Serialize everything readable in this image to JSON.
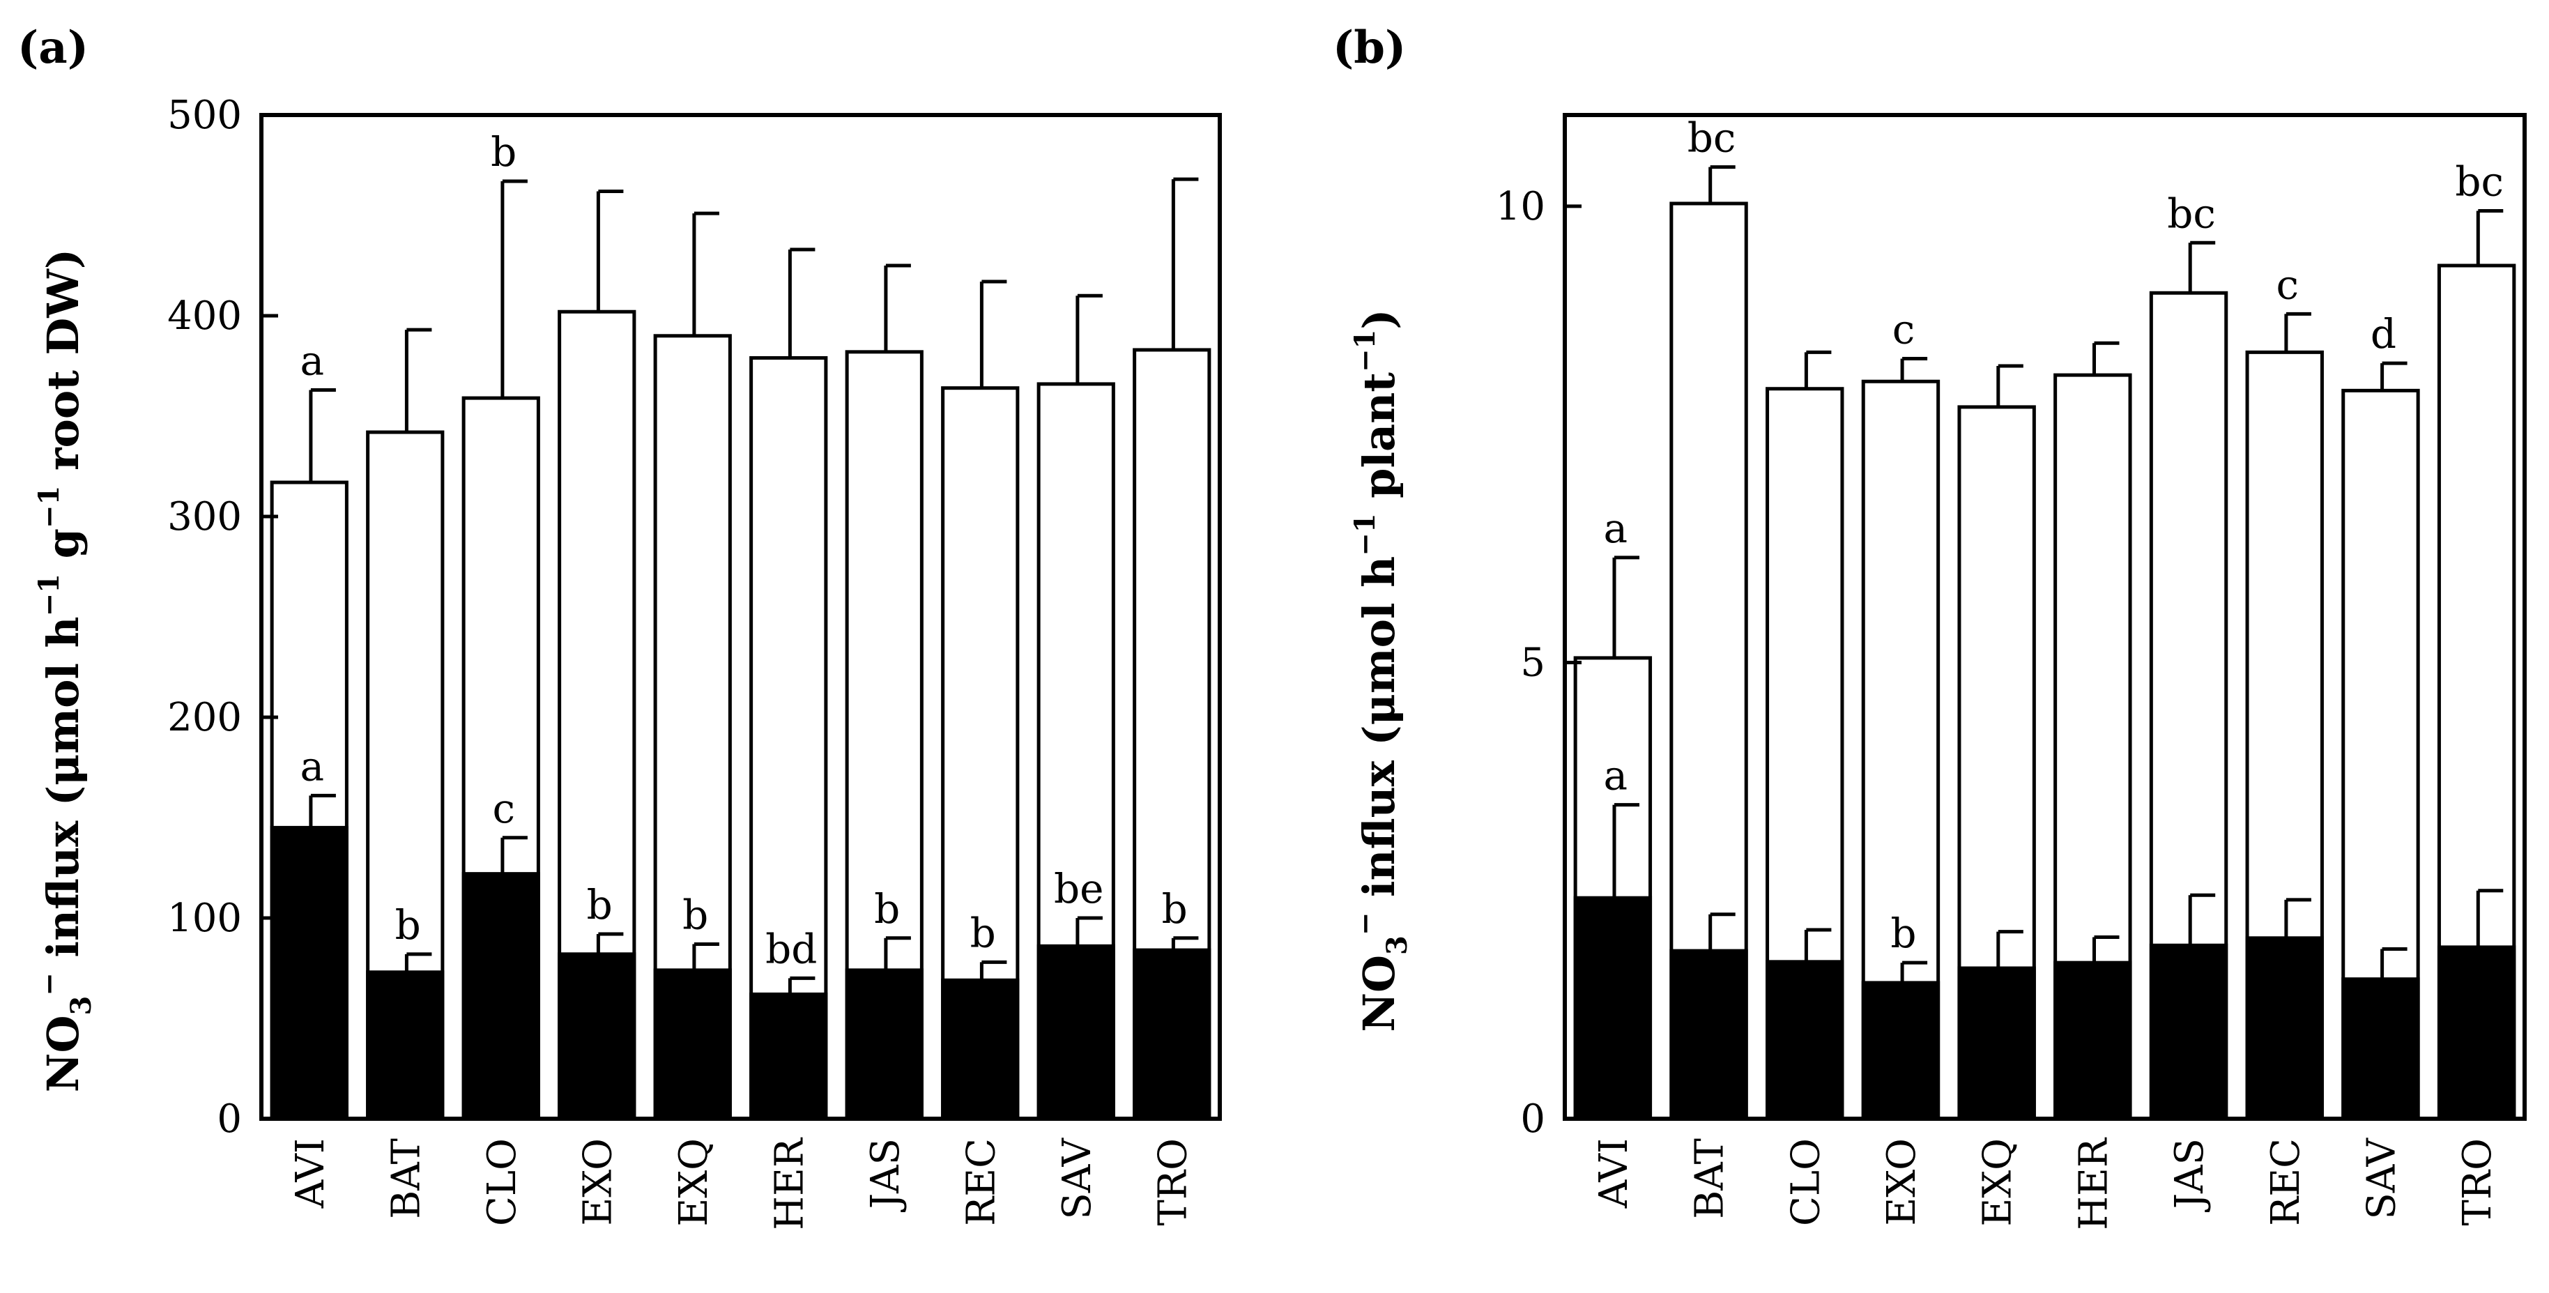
{
  "chart_data": [
    {
      "panel_label": "(a)",
      "type": "bar",
      "stacked_overlay": true,
      "categories": [
        "AVI",
        "BAT",
        "CLO",
        "EXO",
        "EXQ",
        "HER",
        "JAS",
        "REC",
        "SAV",
        "TRO"
      ],
      "series": [
        {
          "name": "total",
          "fill": "#ffffff",
          "values": [
            317,
            342,
            359,
            402,
            390,
            379,
            382,
            364,
            366,
            383
          ],
          "errors": [
            46,
            51,
            108,
            60,
            61,
            54,
            43,
            53,
            44,
            85
          ],
          "letters": [
            "a",
            "",
            "b",
            "",
            "",
            "",
            "",
            "",
            "",
            ""
          ]
        },
        {
          "name": "component",
          "fill": "#000000",
          "values": [
            145,
            73,
            122,
            82,
            74,
            62,
            74,
            69,
            86,
            84
          ],
          "errors": [
            16,
            9,
            18,
            10,
            13,
            8,
            16,
            9,
            14,
            6
          ],
          "letters": [
            "a",
            "b",
            "c",
            "b",
            "b",
            "bd",
            "b",
            "b",
            "be",
            "b"
          ]
        }
      ],
      "ylim": [
        0,
        500
      ],
      "yticks": [
        "0",
        "100",
        "200",
        "300",
        "400",
        "500"
      ],
      "ylabel": {
        "main": "NO",
        "sub": "3",
        "sup1": "−",
        "rest": " influx (μmol h",
        "sup2": "−1",
        "mid": " g",
        "sup3": "−1",
        "end": " root DW)"
      }
    },
    {
      "panel_label": "(b)",
      "type": "bar",
      "stacked_overlay": true,
      "categories": [
        "AVI",
        "BAT",
        "CLO",
        "EXO",
        "EXQ",
        "HER",
        "JAS",
        "REC",
        "SAV",
        "TRO"
      ],
      "series": [
        {
          "name": "total",
          "fill": "#ffffff",
          "values": [
            5.05,
            10.03,
            8.0,
            8.08,
            7.8,
            8.15,
            9.05,
            8.4,
            7.98,
            9.35
          ],
          "errors": [
            1.1,
            0.4,
            0.4,
            0.25,
            0.45,
            0.35,
            0.55,
            0.42,
            0.3,
            0.6
          ],
          "letters": [
            "a",
            "bc",
            "",
            "c",
            "",
            "",
            "bc",
            "c",
            "d",
            "bc"
          ]
        },
        {
          "name": "component",
          "fill": "#000000",
          "values": [
            2.42,
            1.84,
            1.72,
            1.49,
            1.65,
            1.71,
            1.9,
            1.98,
            1.53,
            1.88
          ],
          "errors": [
            1.02,
            0.4,
            0.35,
            0.22,
            0.4,
            0.28,
            0.55,
            0.42,
            0.33,
            0.62
          ],
          "letters": [
            "a",
            "",
            "",
            "b",
            "",
            "",
            "",
            "",
            "",
            ""
          ]
        }
      ],
      "ylim": [
        0,
        11
      ],
      "yticks": [
        "0",
        "5",
        "10"
      ],
      "ytick_values": [
        0,
        5,
        10
      ],
      "ylabel": {
        "main": "NO",
        "sub": "3",
        "sup1": "−",
        "rest": " influx (μmol h",
        "sup2": "−1",
        "mid": " plant",
        "sup3": "−1",
        "end": ")"
      }
    }
  ]
}
